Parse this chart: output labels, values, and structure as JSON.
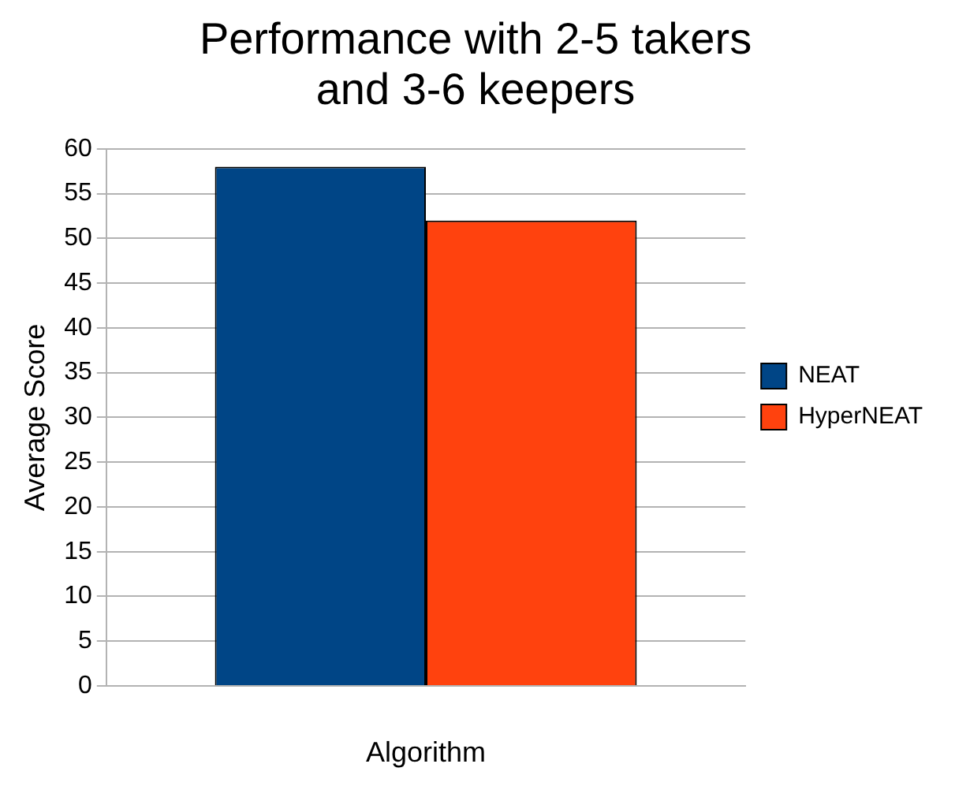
{
  "chart_data": {
    "type": "bar",
    "title": "Performance with 2-5 takers\nand 3-6 keepers",
    "xlabel": "Algorithm",
    "ylabel": "Average Score",
    "categories": [
      null
    ],
    "series": [
      {
        "name": "NEAT",
        "color": "#004586",
        "values": [
          58
        ]
      },
      {
        "name": "HyperNEAT",
        "color": "#ff420e",
        "values": [
          52
        ]
      }
    ],
    "ylim": [
      0,
      60
    ],
    "yticks": [
      0,
      5,
      10,
      15,
      20,
      25,
      30,
      35,
      40,
      45,
      50,
      55,
      60
    ],
    "grid": "y",
    "legend": "right"
  }
}
